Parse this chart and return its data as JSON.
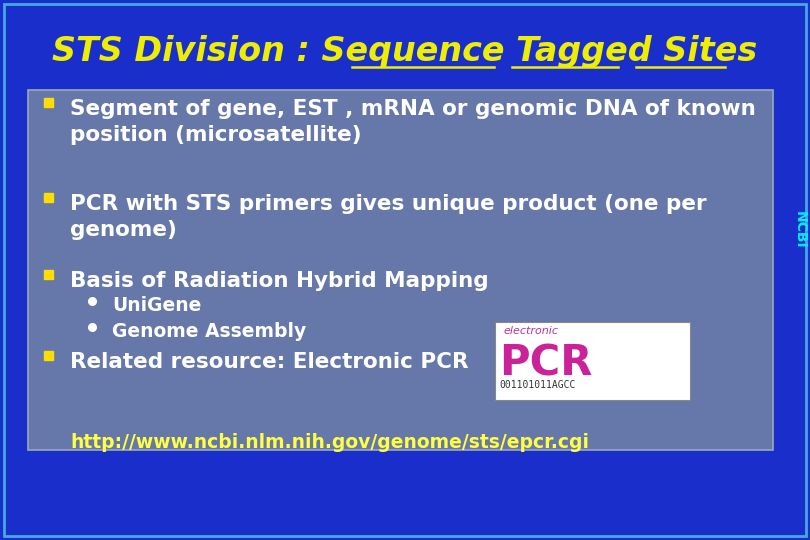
{
  "title": "STS Division : Sequence Tagged Sites",
  "title_color": "#EEEE00",
  "bg_color": "#1A2ECC",
  "content_box_color": "#6677AA",
  "content_box_border_color": "#99AABB",
  "bullet_color": "#FFDD00",
  "text_color": "#FFFFFF",
  "url_color": "#FFFF44",
  "ncbi_color": "#00EEFF",
  "outer_border_color": "#44AADD",
  "ncbi_label": "NCBI",
  "url": "http://www.ncbi.nlm.nih.gov/genome/sts/epcr.cgi"
}
